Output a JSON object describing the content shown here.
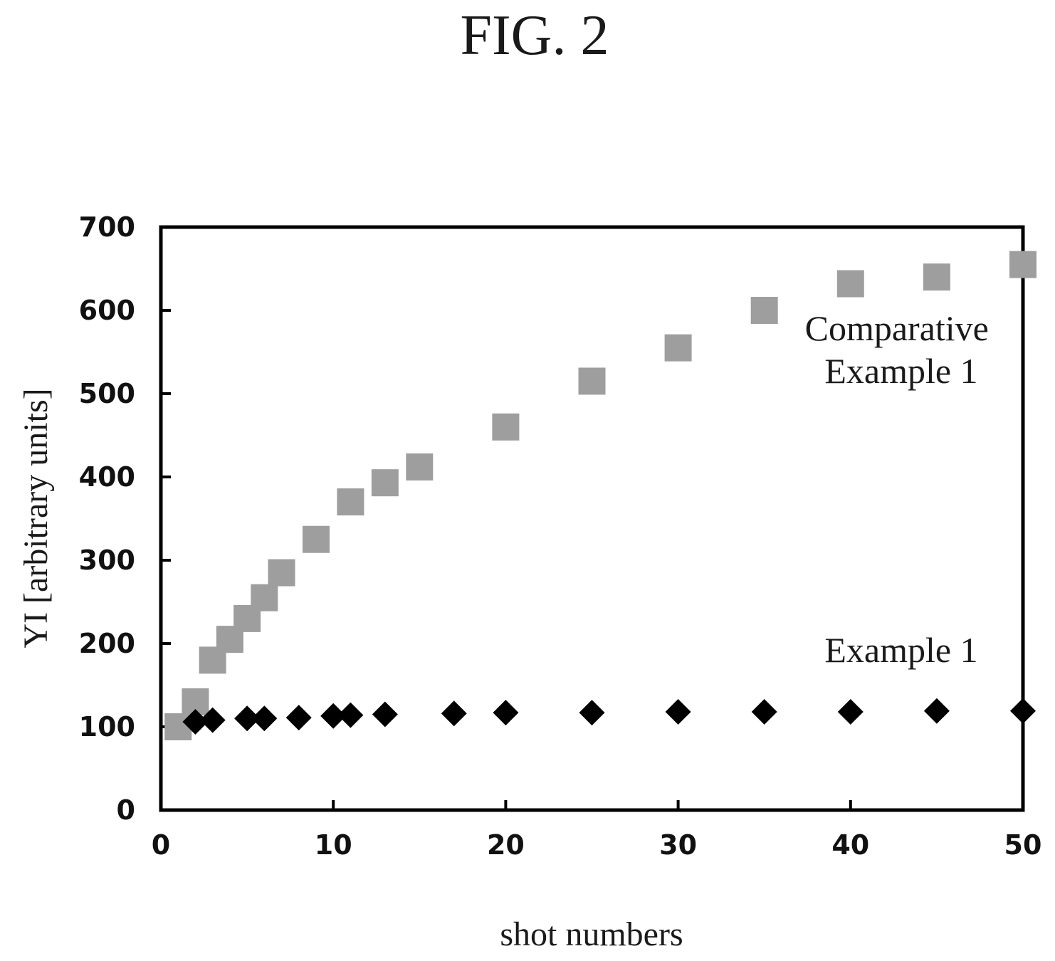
{
  "figure": {
    "title": "FIG. 2"
  },
  "chart_data": {
    "type": "scatter",
    "title": "",
    "xlabel": "shot numbers",
    "ylabel": "YI [arbitrary units]",
    "xlim": [
      0,
      50
    ],
    "ylim": [
      0,
      700
    ],
    "x_ticks": [
      0,
      10,
      20,
      30,
      40,
      50
    ],
    "y_ticks": [
      0,
      100,
      200,
      300,
      400,
      500,
      600,
      700
    ],
    "grid": false,
    "legend": "none",
    "annotations": [
      {
        "text_lines": [
          "Comparative",
          "Example 1"
        ],
        "series_index": 0
      },
      {
        "text_lines": [
          "Example 1"
        ],
        "series_index": 1
      }
    ],
    "series": [
      {
        "name": "Comparative Example 1",
        "marker": "square",
        "color": "#9e9e9e",
        "x": [
          1,
          2,
          3,
          4,
          5,
          6,
          7,
          9,
          11,
          13,
          15,
          20,
          25,
          30,
          35,
          40,
          45,
          50
        ],
        "y": [
          100,
          130,
          180,
          205,
          230,
          255,
          285,
          325,
          370,
          393,
          412,
          460,
          515,
          555,
          600,
          632,
          640,
          655
        ]
      },
      {
        "name": "Example 1",
        "marker": "diamond",
        "color": "#000000",
        "x": [
          2,
          3,
          5,
          6,
          8,
          10,
          11,
          13,
          17,
          20,
          25,
          30,
          35,
          40,
          45,
          50
        ],
        "y": [
          106,
          108,
          110,
          110,
          111,
          113,
          114,
          115,
          116,
          117,
          117,
          118,
          118,
          118,
          119,
          119
        ]
      }
    ]
  }
}
